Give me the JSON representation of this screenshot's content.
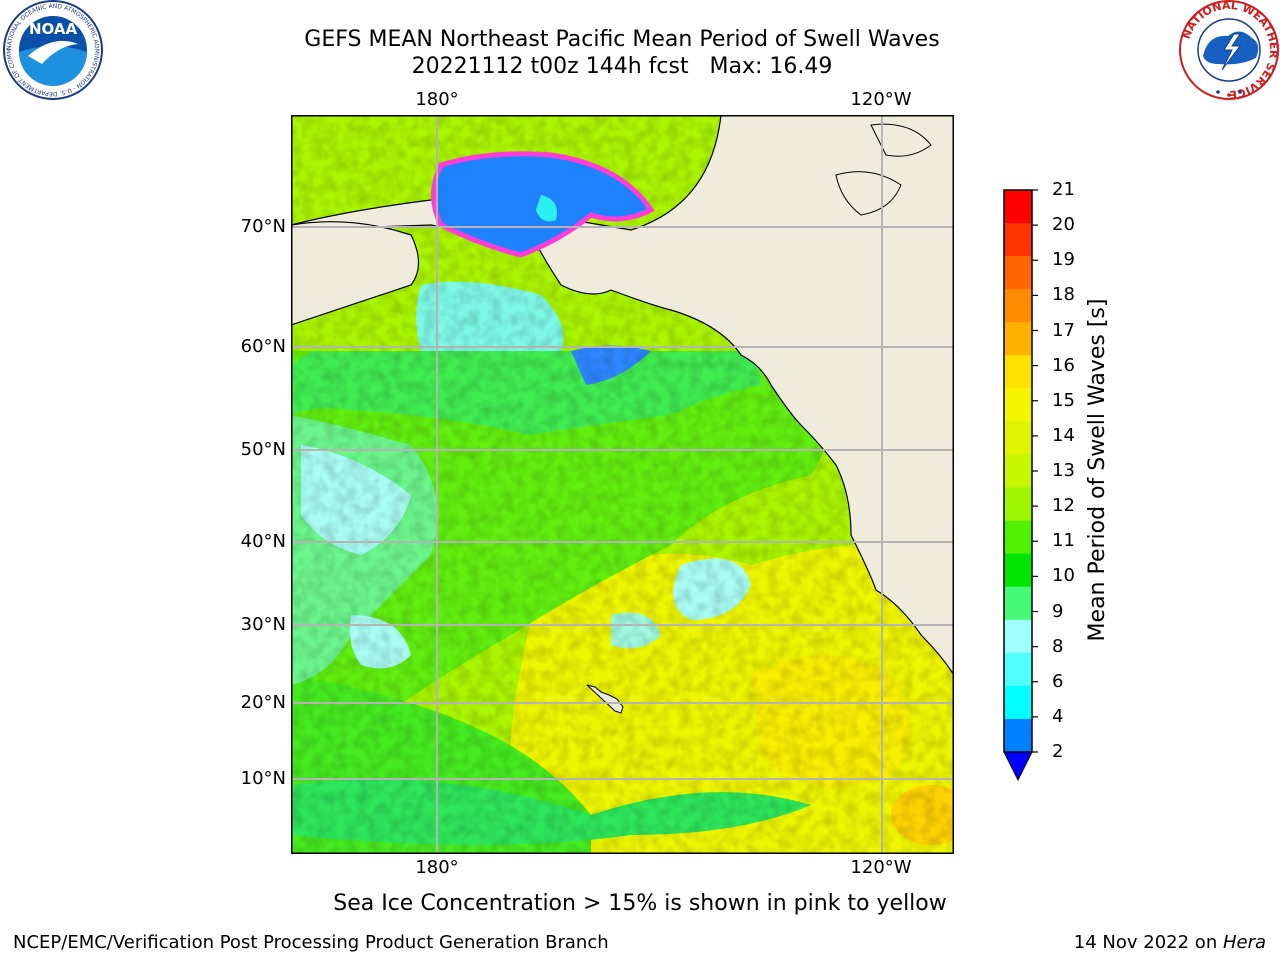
{
  "title": {
    "line1": "GEFS MEAN Northeast Pacific Mean Period of Swell Waves",
    "line2": "20221112 t00z 144h fcst   Max: 16.49"
  },
  "logos": {
    "noaa": {
      "text": "NOAA",
      "ring_text": "NATIONAL OCEANIC AND ATMOSPHERIC ADMINISTRATION · U.S. DEPARTMENT OF COMMERCE",
      "icon": "noaa-logo"
    },
    "nws": {
      "ring_text": "NATIONAL WEATHER SERVICE",
      "icon": "nws-logo"
    }
  },
  "map": {
    "lon_labels_top": [
      "180°",
      "120°W"
    ],
    "lon_labels_bottom": [
      "180°",
      "120°W"
    ],
    "lat_labels": [
      "70°N",
      "60°N",
      "50°N",
      "40°N",
      "30°N",
      "20°N",
      "10°N"
    ],
    "land_color": "#efecdc",
    "grid": true
  },
  "colorbar": {
    "label": "Mean Period of Swell Waves [s]",
    "ticks": [
      "21",
      "20",
      "19",
      "18",
      "17",
      "16",
      "15",
      "14",
      "13",
      "12",
      "11",
      "10",
      "9",
      "8",
      "6",
      "4",
      "2"
    ],
    "colors": [
      "#ff0000",
      "#ff3300",
      "#ff6600",
      "#ff8c00",
      "#ffb300",
      "#ffe100",
      "#f5f500",
      "#e1f500",
      "#c8f500",
      "#a0f500",
      "#50f000",
      "#00e600",
      "#46fa78",
      "#a0ffff",
      "#50ffff",
      "#00ffff",
      "#0080ff"
    ],
    "extend_color": "#0000ff"
  },
  "ice_note": "Sea Ice Concentration > 15% is shown in pink to yellow",
  "footer": {
    "left": "NCEP/EMC/Verification Post Processing Product Generation Branch",
    "right_prefix": "14 Nov 2022 on ",
    "right_italic": "Hera"
  }
}
